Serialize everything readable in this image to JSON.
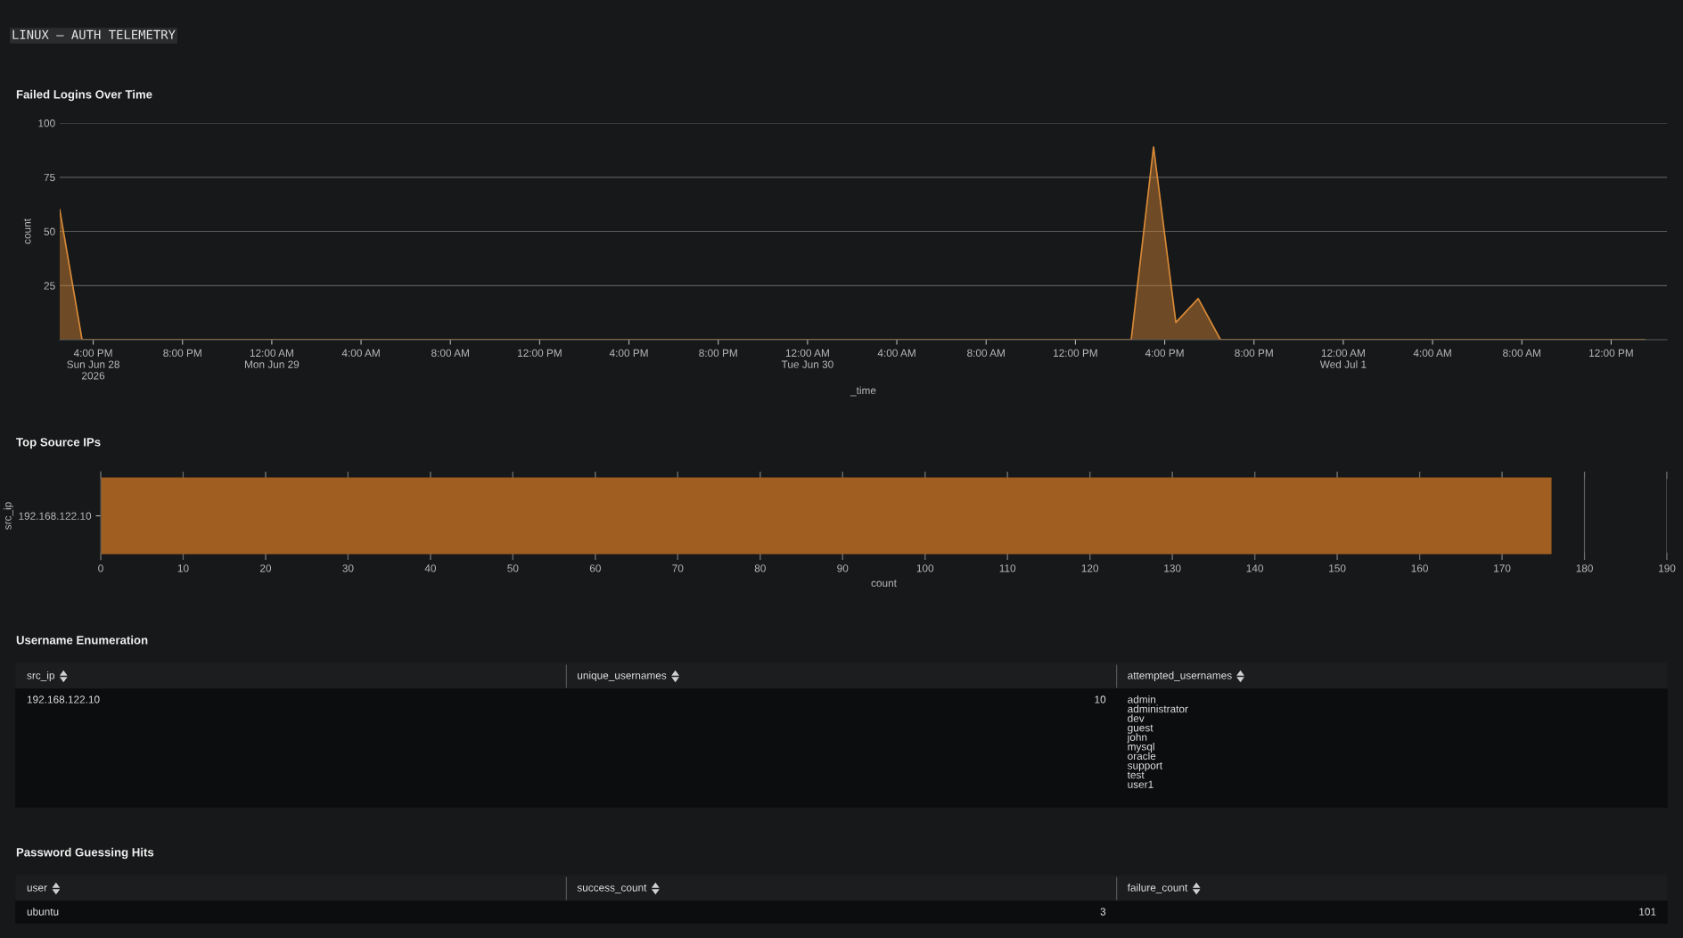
{
  "chart_data": [
    {
      "type": "area",
      "title": "Failed Logins Over Time",
      "annotations": [
        "LINUX – AUTH TELEMETRY"
      ],
      "xlabel": "_time",
      "ylabel": "count",
      "x": [
        "2026-06-28T14:30",
        "2026-06-28T15:30",
        "2026-06-30T14:30",
        "2026-06-30T15:30",
        "2026-06-30T16:30",
        "2026-06-30T17:30",
        "2026-06-30T18:30",
        "2026-07-01T13:30"
      ],
      "series": [
        {
          "color": "#d98a37",
          "values": [
            60,
            0,
            0,
            89,
            8,
            19,
            0,
            0
          ]
        }
      ],
      "xlim": [
        "2026-06-28T14:30",
        "2026-07-01T14:30"
      ],
      "xticks": [
        {
          "value": "2026-06-28T16:00",
          "label": "4:00 PM\nSun Jun 28\n2026"
        },
        {
          "value": "2026-06-28T20:00",
          "label": "8:00 PM"
        },
        {
          "value": "2026-06-29T00:00",
          "label": "12:00 AM\nMon Jun 29"
        },
        {
          "value": "2026-06-29T04:00",
          "label": "4:00 AM"
        },
        {
          "value": "2026-06-29T08:00",
          "label": "8:00 AM"
        },
        {
          "value": "2026-06-29T12:00",
          "label": "12:00 PM"
        },
        {
          "value": "2026-06-29T16:00",
          "label": "4:00 PM"
        },
        {
          "value": "2026-06-29T20:00",
          "label": "8:00 PM"
        },
        {
          "value": "2026-06-30T00:00",
          "label": "12:00 AM\nTue Jun 30"
        },
        {
          "value": "2026-06-30T04:00",
          "label": "4:00 AM"
        },
        {
          "value": "2026-06-30T08:00",
          "label": "8:00 AM"
        },
        {
          "value": "2026-06-30T12:00",
          "label": "12:00 PM"
        },
        {
          "value": "2026-06-30T16:00",
          "label": "4:00 PM"
        },
        {
          "value": "2026-06-30T20:00",
          "label": "8:00 PM"
        },
        {
          "value": "2026-07-01T00:00",
          "label": "12:00 AM\nWed Jul 1"
        },
        {
          "value": "2026-07-01T04:00",
          "label": "4:00 AM"
        },
        {
          "value": "2026-07-01T08:00",
          "label": "8:00 AM"
        },
        {
          "value": "2026-07-01T12:00",
          "label": "12:00 PM"
        }
      ],
      "ylim": [
        0,
        100
      ],
      "yticks": [
        25,
        50,
        75,
        100
      ],
      "grid": "y",
      "legend": false
    },
    {
      "type": "bar",
      "orientation": "horizontal",
      "title": "Top Source IPs",
      "xlabel": "count",
      "ylabel": "src_ip",
      "categories": [
        "192.168.122.10"
      ],
      "series": [
        {
          "color": "#a05f20",
          "values": [
            176
          ]
        }
      ],
      "xlim": [
        0,
        190
      ],
      "xticks": [
        0,
        10,
        20,
        30,
        40,
        50,
        60,
        70,
        80,
        90,
        100,
        110,
        120,
        130,
        140,
        150,
        160,
        170,
        180,
        190
      ],
      "grid": "x",
      "legend": false
    },
    {
      "type": "other",
      "title": "Username Enumeration",
      "categories": [
        "src_ip",
        "unique_usernames",
        "attempted_usernames"
      ],
      "cell_labels": [
        [
          "192.168.122.10",
          "10",
          "admin\nadministrator\ndev\nguest\njohn\nmysql\noracle\nsupport\ntest\nuser1"
        ]
      ]
    },
    {
      "type": "other",
      "title": "Password Guessing Hits",
      "categories": [
        "user",
        "success_count",
        "failure_count"
      ],
      "cell_labels": [
        [
          "ubuntu",
          "3",
          "101"
        ]
      ]
    }
  ]
}
